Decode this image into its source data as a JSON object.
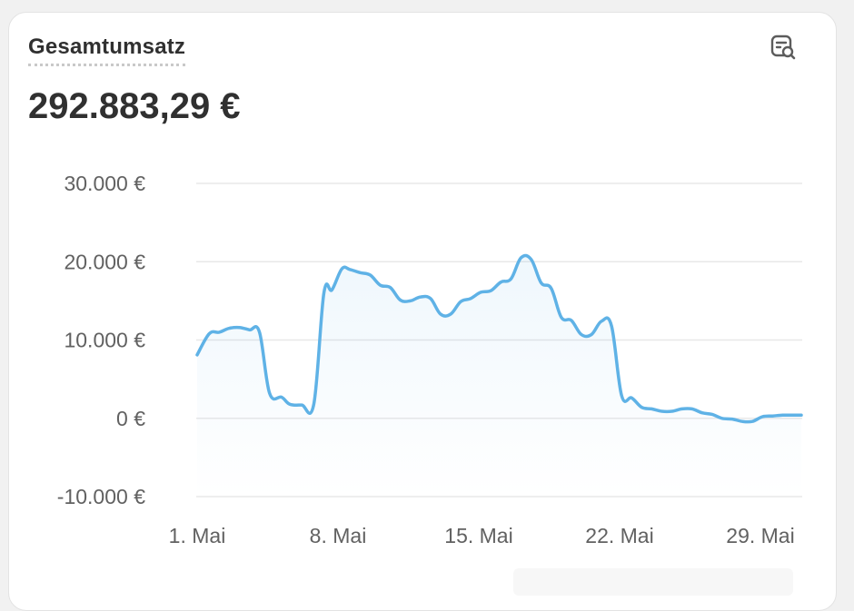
{
  "card": {
    "title": "Gesamtumsatz",
    "total": "292.883,29 €",
    "icon": "report-search-icon"
  },
  "colors": {
    "line": "#5fb2e6",
    "grid": "#e8e8e8",
    "text": "#303030",
    "tick": "#616161"
  },
  "chart_data": {
    "type": "area",
    "title": "",
    "xlabel": "",
    "ylabel": "",
    "ylim": [
      -10000,
      30000
    ],
    "xlim": [
      1,
      31
    ],
    "y_ticks": [
      {
        "value": 30000,
        "label": "30.000 €"
      },
      {
        "value": 20000,
        "label": "20.000 €"
      },
      {
        "value": 10000,
        "label": "10.000 €"
      },
      {
        "value": 0,
        "label": "0 €"
      },
      {
        "value": -10000,
        "label": "-10.000 €"
      }
    ],
    "x_ticks": [
      {
        "value": 1,
        "label": "1. Mai"
      },
      {
        "value": 8,
        "label": "8. Mai"
      },
      {
        "value": 15,
        "label": "15. Mai"
      },
      {
        "value": 22,
        "label": "22. Mai"
      },
      {
        "value": 29,
        "label": "29. Mai"
      }
    ],
    "grid": true,
    "legend": "none",
    "series": [
      {
        "values": [
          [
            1.0,
            8100
          ],
          [
            1.6,
            10800
          ],
          [
            2.1,
            11000
          ],
          [
            2.6,
            11500
          ],
          [
            3.1,
            11600
          ],
          [
            3.6,
            11300
          ],
          [
            4.1,
            11000
          ],
          [
            4.6,
            3200
          ],
          [
            5.2,
            2700
          ],
          [
            5.6,
            1800
          ],
          [
            6.2,
            1700
          ],
          [
            6.8,
            1800
          ],
          [
            7.3,
            16000
          ],
          [
            7.7,
            16400
          ],
          [
            8.2,
            19100
          ],
          [
            8.6,
            19000
          ],
          [
            9.1,
            18600
          ],
          [
            9.6,
            18300
          ],
          [
            10.1,
            17000
          ],
          [
            10.6,
            16700
          ],
          [
            11.1,
            15100
          ],
          [
            11.6,
            15000
          ],
          [
            12.1,
            15500
          ],
          [
            12.6,
            15300
          ],
          [
            13.1,
            13300
          ],
          [
            13.6,
            13300
          ],
          [
            14.1,
            14900
          ],
          [
            14.6,
            15300
          ],
          [
            15.1,
            16100
          ],
          [
            15.6,
            16300
          ],
          [
            16.1,
            17400
          ],
          [
            16.6,
            17800
          ],
          [
            17.1,
            20500
          ],
          [
            17.6,
            20300
          ],
          [
            18.1,
            17300
          ],
          [
            18.6,
            16600
          ],
          [
            19.1,
            12900
          ],
          [
            19.6,
            12500
          ],
          [
            20.1,
            10700
          ],
          [
            20.6,
            10700
          ],
          [
            21.1,
            12400
          ],
          [
            21.6,
            11800
          ],
          [
            22.1,
            2900
          ],
          [
            22.6,
            2600
          ],
          [
            23.1,
            1400
          ],
          [
            23.6,
            1200
          ],
          [
            24.1,
            900
          ],
          [
            24.6,
            900
          ],
          [
            25.1,
            1200
          ],
          [
            25.6,
            1200
          ],
          [
            26.1,
            700
          ],
          [
            26.6,
            500
          ],
          [
            27.1,
            0
          ],
          [
            27.6,
            -100
          ],
          [
            28.1,
            -400
          ],
          [
            28.6,
            -400
          ],
          [
            29.1,
            200
          ],
          [
            29.6,
            300
          ],
          [
            30.1,
            400
          ],
          [
            30.6,
            400
          ]
        ]
      }
    ]
  }
}
